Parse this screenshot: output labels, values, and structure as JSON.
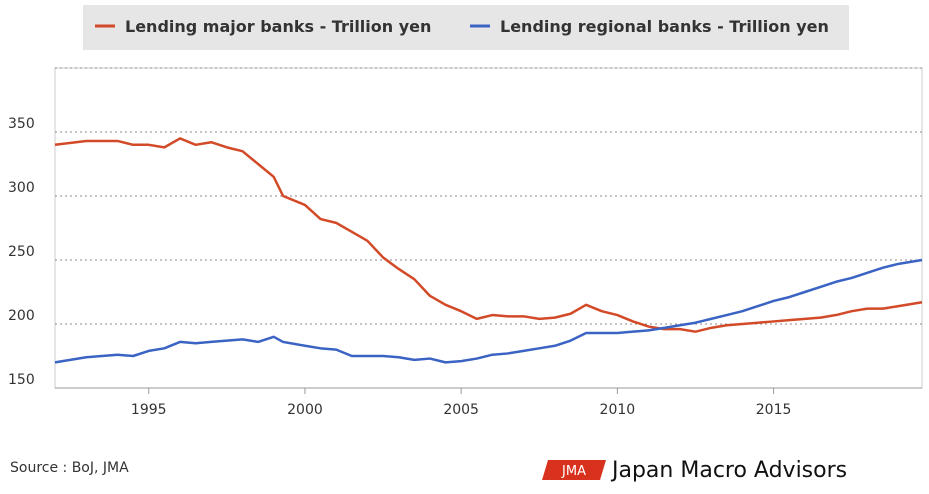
{
  "chart_data": {
    "type": "line",
    "x": [
      1992,
      1993,
      1994,
      1994.5,
      1995,
      1995.5,
      1996,
      1996.5,
      1997,
      1997.5,
      1998,
      1998.5,
      1999,
      1999.3,
      2000,
      2000.5,
      2001,
      2001.5,
      2002,
      2002.5,
      2003,
      2003.5,
      2004,
      2004.5,
      2005,
      2005.5,
      2006,
      2006.5,
      2007,
      2007.5,
      2008,
      2008.5,
      2009,
      2009.5,
      2010,
      2010.5,
      2011,
      2011.5,
      2012,
      2012.5,
      2013,
      2013.5,
      2014,
      2014.5,
      2015,
      2015.5,
      2016,
      2016.5,
      2017,
      2017.5,
      2018,
      2018.5,
      2019,
      2019.75
    ],
    "series": [
      {
        "name": "Lending major banks - Trillion yen",
        "color": "#d24a27",
        "values": [
          340,
          343,
          343,
          340,
          340,
          338,
          345,
          340,
          342,
          338,
          335,
          325,
          315,
          300,
          293,
          282,
          279,
          272,
          265,
          252,
          243,
          235,
          222,
          215,
          210,
          204,
          207,
          206,
          206,
          204,
          205,
          208,
          215,
          210,
          207,
          202,
          198,
          196,
          196,
          194,
          197,
          199,
          200,
          201,
          202,
          203,
          204,
          205,
          207,
          210,
          212,
          212,
          214,
          217
        ]
      },
      {
        "name": "Lending regional banks - Trillion yen",
        "color": "#3a63c4",
        "values": [
          170,
          174,
          176,
          175,
          179,
          181,
          186,
          185,
          186,
          187,
          188,
          186,
          190,
          186,
          183,
          181,
          180,
          175,
          175,
          175,
          174,
          172,
          173,
          170,
          171,
          173,
          176,
          177,
          179,
          181,
          183,
          187,
          193,
          193,
          193,
          194,
          195,
          197,
          199,
          201,
          204,
          207,
          210,
          214,
          218,
          221,
          225,
          229,
          233,
          236,
          240,
          244,
          247,
          250
        ]
      }
    ],
    "xlim": [
      1992,
      2019.75
    ],
    "xticks": [
      1995,
      2000,
      2005,
      2010,
      2015
    ],
    "ylim": [
      150,
      400
    ],
    "yticks": [
      150,
      200,
      250,
      300,
      350
    ],
    "grid": true,
    "source": "Source : BoJ, JMA",
    "logo_mark": "JMA",
    "logo_text": "Japan Macro Advisors"
  }
}
